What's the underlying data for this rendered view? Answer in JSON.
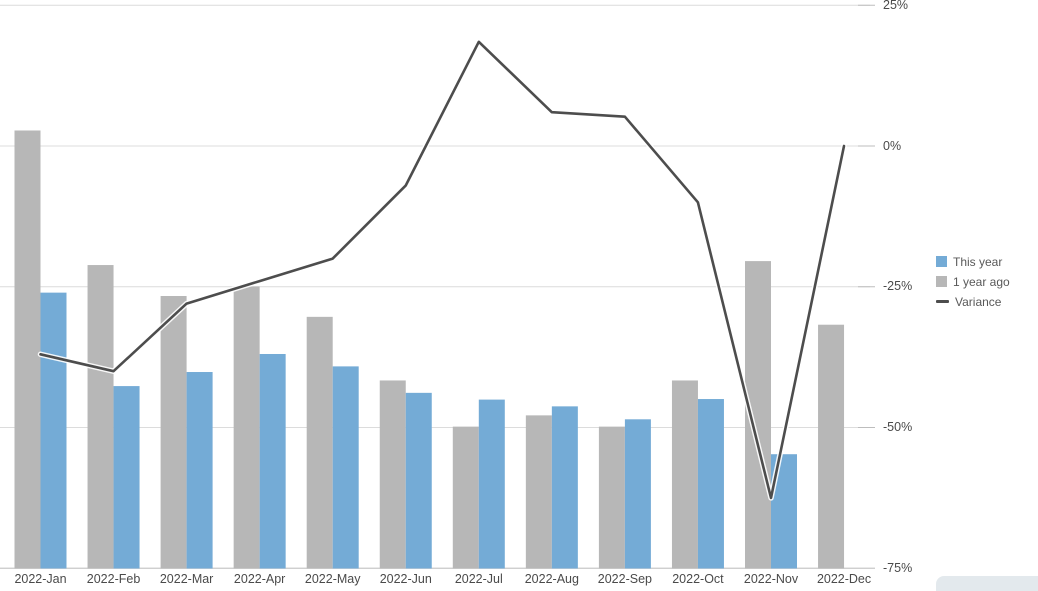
{
  "chart_data": {
    "type": "bar",
    "subtype": "grouped-bars-with-line-overlay",
    "title": "",
    "categories": [
      "2022-Jan",
      "2022-Feb",
      "2022-Mar",
      "2022-Apr",
      "2022-May",
      "2022-Jun",
      "2022-Jul",
      "2022-Aug",
      "2022-Sep",
      "2022-Oct",
      "2022-Nov",
      "2022-Dec"
    ],
    "series": [
      {
        "name": "This year",
        "type": "bar",
        "color": "#74ABD6",
        "values": [
          49.0,
          32.4,
          34.9,
          38.1,
          35.9,
          31.2,
          30.0,
          28.8,
          26.5,
          30.1,
          20.3,
          null
        ]
      },
      {
        "name": "1 year ago",
        "type": "bar",
        "color": "#B7B7B7",
        "values": [
          77.8,
          53.9,
          48.4,
          50.1,
          44.7,
          33.4,
          25.2,
          27.2,
          25.2,
          33.4,
          54.6,
          43.3
        ]
      },
      {
        "name": "Variance",
        "type": "line",
        "color": "#4D4D4D",
        "values": [
          -37,
          -40,
          -28,
          -24,
          -20,
          -7,
          18.5,
          6,
          5.2,
          -10,
          -62.5,
          0
        ]
      }
    ],
    "bar_value_scale": "relative units 0-100 on hidden left axis (percent of plot height)",
    "y_axis_right": {
      "tick_labels": [
        "25%",
        "0%",
        "-25%",
        "-50%",
        "-75%"
      ],
      "tick_values": [
        25,
        0,
        -25,
        -50,
        -75
      ],
      "range": [
        -75,
        25
      ]
    },
    "grid": true,
    "legend": {
      "position": "right",
      "entries": [
        {
          "label": "This year",
          "swatch": "square",
          "color": "#74ABD6"
        },
        {
          "label": "1 year ago",
          "swatch": "square",
          "color": "#B7B7B7"
        },
        {
          "label": "Variance",
          "swatch": "line",
          "color": "#4D4D4D"
        }
      ]
    }
  },
  "colors": {
    "background": "#FFFFFF",
    "gridline": "#DCDCDC",
    "axis_line": "#C8C8C8",
    "tick_mark": "#BDBDBD",
    "axis_text": "#4A4A4A",
    "legend_text": "#595959",
    "line_halo": "#FFFFFF",
    "corner_artifact": "#E3E9ED"
  }
}
